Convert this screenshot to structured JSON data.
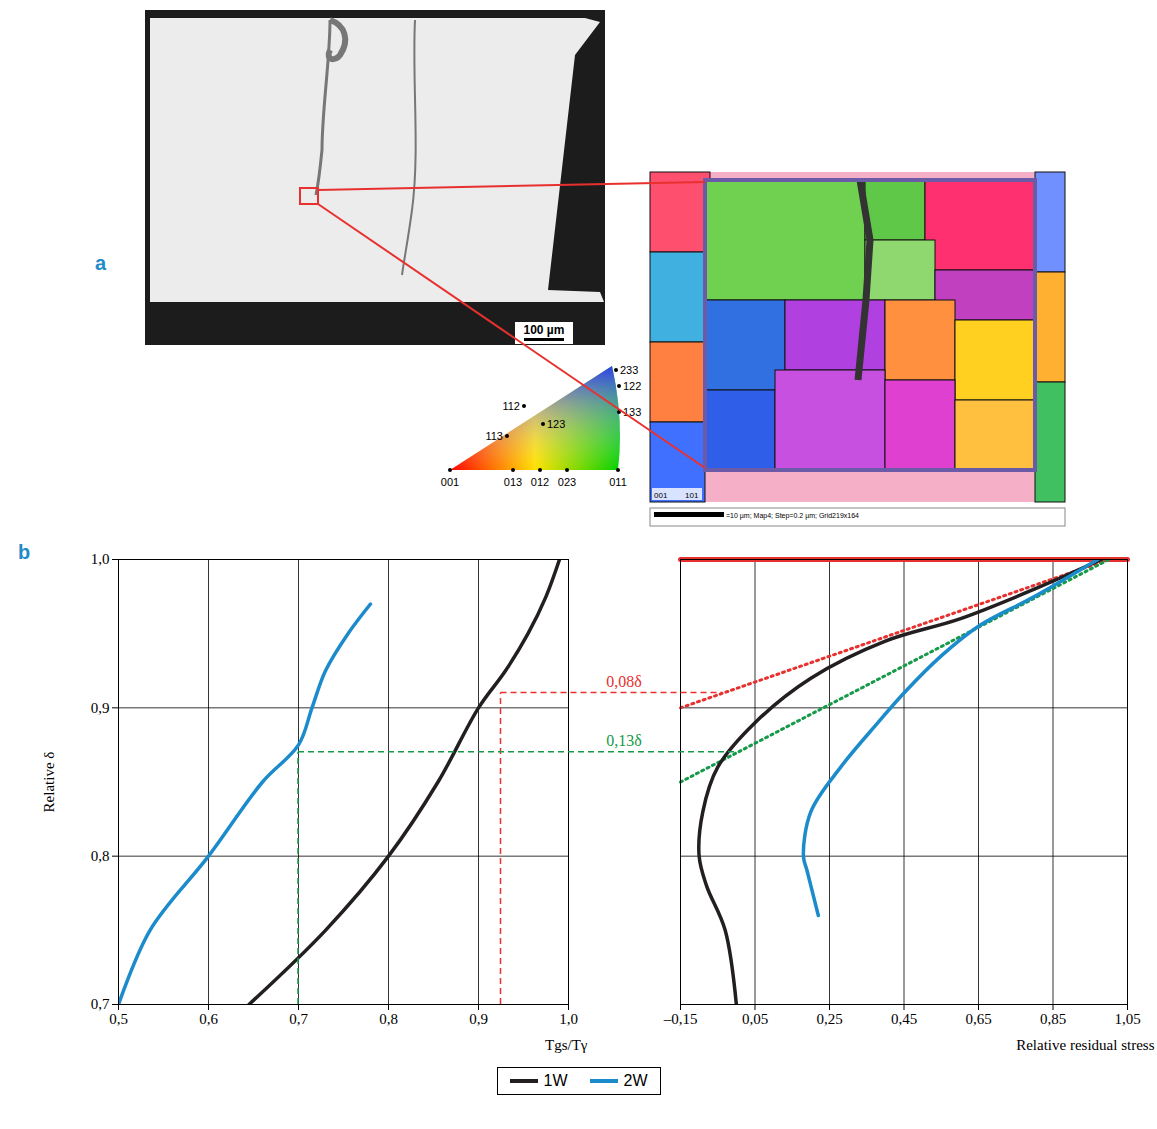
{
  "panel_a": {
    "label": "a",
    "scale_bar": "100 µm",
    "ipf_labels": [
      "001",
      "013",
      "012",
      "023",
      "011",
      "113",
      "112",
      "123",
      "233",
      "122",
      "133"
    ],
    "ebsd_caption": "=10 µm; Map4; Step=0.2 µm; Grid219x164",
    "ebsd_axis_labels": [
      "001",
      "101"
    ]
  },
  "panel_b": {
    "label": "b"
  },
  "chart_data": [
    {
      "type": "line",
      "xlabel": "Tgs/Tγ",
      "ylabel": "Relative δ",
      "xlim": [
        0.5,
        1.0
      ],
      "ylim": [
        0.7,
        1.0
      ],
      "xticks": [
        {
          "value": 0.5,
          "label": "0,5"
        },
        {
          "value": 0.6,
          "label": "0,6"
        },
        {
          "value": 0.7,
          "label": "0,7"
        },
        {
          "value": 0.8,
          "label": "0,8"
        },
        {
          "value": 0.9,
          "label": "0,9"
        },
        {
          "value": 1.0,
          "label": "1,0"
        }
      ],
      "yticks": [
        {
          "value": 0.7,
          "label": "0,7"
        },
        {
          "value": 0.8,
          "label": "0,8"
        },
        {
          "value": 0.9,
          "label": "0,9"
        },
        {
          "value": 1.0,
          "label": "1,0"
        }
      ],
      "grid": true,
      "legend": "bottom",
      "series": [
        {
          "name": "1W",
          "color": "#231f20",
          "x": [
            0.645,
            0.73,
            0.8,
            0.855,
            0.9,
            0.93,
            0.955,
            0.975,
            0.99
          ],
          "values": [
            0.7,
            0.75,
            0.8,
            0.85,
            0.9,
            0.925,
            0.95,
            0.975,
            1.0
          ]
        },
        {
          "name": "2W",
          "color": "#1b8bcb",
          "x": [
            0.5,
            0.535,
            0.6,
            0.66,
            0.7,
            0.715,
            0.73,
            0.755,
            0.78
          ],
          "values": [
            0.7,
            0.75,
            0.8,
            0.85,
            0.875,
            0.9,
            0.925,
            0.95,
            0.97
          ]
        }
      ]
    },
    {
      "type": "line",
      "xlabel": "Relative residual stress",
      "xlim": [
        -0.15,
        1.05
      ],
      "ylim": [
        0.7,
        1.0
      ],
      "xticks": [
        {
          "value": -0.15,
          "label": "–0,15"
        },
        {
          "value": 0.05,
          "label": "0,05"
        },
        {
          "value": 0.25,
          "label": "0,25"
        },
        {
          "value": 0.45,
          "label": "0,45"
        },
        {
          "value": 0.65,
          "label": "0,65"
        },
        {
          "value": 0.85,
          "label": "0,85"
        },
        {
          "value": 1.05,
          "label": "1,05"
        }
      ],
      "yticks": [
        0.7,
        0.8,
        0.9,
        1.0
      ],
      "grid": true,
      "tick_labels": "x",
      "series": [
        {
          "name": "1W",
          "color": "#231f20",
          "x": [
            0.0,
            -0.03,
            -0.08,
            -0.1,
            -0.09,
            -0.05,
            0.05,
            0.2,
            0.4,
            0.6,
            0.8,
            0.98
          ],
          "values": [
            0.7,
            0.75,
            0.78,
            0.8,
            0.83,
            0.86,
            0.89,
            0.92,
            0.945,
            0.96,
            0.98,
            1.0
          ]
        },
        {
          "name": "2W",
          "color": "#1b8bcb",
          "x": [
            0.22,
            0.19,
            0.18,
            0.2,
            0.28,
            0.38,
            0.45,
            0.55,
            0.65,
            0.8,
            0.97
          ],
          "values": [
            0.76,
            0.79,
            0.8,
            0.83,
            0.86,
            0.89,
            0.91,
            0.935,
            0.955,
            0.975,
            1.0
          ]
        }
      ],
      "reference_lines": [
        {
          "color": "#e8312f",
          "line_style": "solid",
          "x": [
            -0.15,
            1.05
          ],
          "y": [
            1.0,
            1.0
          ]
        },
        {
          "color": "#e8312f",
          "line_style": "dotted",
          "x": [
            -0.15,
            1.0
          ],
          "y": [
            0.9,
            1.0
          ]
        },
        {
          "color": "#159a4a",
          "line_style": "dotted",
          "x": [
            -0.15,
            1.0
          ],
          "y": [
            0.85,
            1.0
          ]
        }
      ],
      "annotations": [
        {
          "text": "0,08δ",
          "color": "#e8312f",
          "line_style": "dashed",
          "y": 0.91,
          "x_from": 0.925,
          "x_to": -0.035
        },
        {
          "text": "0,13δ",
          "color": "#159a4a",
          "line_style": "dashed",
          "y": 0.87,
          "x_from": 0.7,
          "x_to": 0.003
        }
      ]
    }
  ]
}
